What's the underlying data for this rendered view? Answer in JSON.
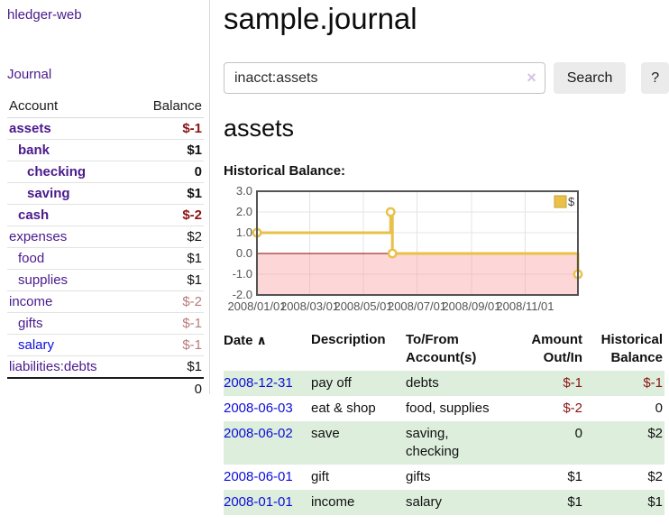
{
  "app": {
    "title": "hledger-web",
    "nav_journal": "Journal"
  },
  "colors": {
    "link_purple": "#4a1a8c",
    "link_blue": "#0d0dd9",
    "negative_strong": "#8b1414",
    "negative_muted": "#bb7a7a",
    "row_stripe_green": "#ddeedd",
    "button_bg": "#ebebeb",
    "chart_line_gold": "#e9c04a",
    "chart_negative_fill": "#fbdcdc",
    "chart_zero_line": "#8c0606",
    "chart_border": "#545454"
  },
  "sidebar": {
    "headers": [
      "Account",
      "Balance"
    ],
    "rows": [
      {
        "label": "assets",
        "depth": 1,
        "bold": true,
        "link_color": "purple",
        "balance": "$-1",
        "balance_style": "neg-strong"
      },
      {
        "label": "bank",
        "depth": 2,
        "bold": true,
        "link_color": "purple",
        "balance": "$1",
        "balance_style": "plain"
      },
      {
        "label": "checking",
        "depth": 3,
        "bold": true,
        "link_color": "purple",
        "balance": "0",
        "balance_style": "plain"
      },
      {
        "label": "saving",
        "depth": 3,
        "bold": true,
        "link_color": "purple",
        "balance": "$1",
        "balance_style": "plain"
      },
      {
        "label": "cash",
        "depth": 2,
        "bold": true,
        "link_color": "purple",
        "balance": "$-2",
        "balance_style": "neg-strong"
      },
      {
        "label": "expenses",
        "depth": 1,
        "bold": false,
        "link_color": "purple",
        "balance": "$2",
        "balance_style": "plain"
      },
      {
        "label": "food",
        "depth": 2,
        "bold": false,
        "link_color": "purple",
        "balance": "$1",
        "balance_style": "plain"
      },
      {
        "label": "supplies",
        "depth": 2,
        "bold": false,
        "link_color": "purple",
        "balance": "$1",
        "balance_style": "plain"
      },
      {
        "label": "income",
        "depth": 1,
        "bold": false,
        "link_color": "purple",
        "balance": "$-2",
        "balance_style": "neg-muted"
      },
      {
        "label": "gifts",
        "depth": 2,
        "bold": false,
        "link_color": "purple",
        "balance": "$-1",
        "balance_style": "neg-muted"
      },
      {
        "label": "salary",
        "depth": 2,
        "bold": false,
        "link_color": "blue",
        "balance": "$-1",
        "balance_style": "neg-muted"
      },
      {
        "label": "liabilities:debts",
        "depth": 1,
        "bold": false,
        "link_color": "purple",
        "balance": "$1",
        "balance_style": "plain"
      }
    ],
    "total": "0"
  },
  "main": {
    "title": "sample.journal",
    "search": {
      "value": "inacct:assets",
      "clear_icon": "×",
      "button": "Search",
      "help": "?"
    },
    "account_heading": "assets",
    "chart_label": "Historical Balance:"
  },
  "chart_data": {
    "type": "line",
    "title": "Historical Balance:",
    "step": true,
    "series": [
      {
        "name": "$",
        "color": "#e9c04a",
        "points": [
          [
            "2008-01-01",
            1
          ],
          [
            "2008-06-01",
            2
          ],
          [
            "2008-06-03",
            0
          ],
          [
            "2008-12-31",
            -1
          ]
        ]
      }
    ],
    "x_start": "2008-01-01",
    "x_end": "2008-12-31",
    "ylim": [
      -2,
      3
    ],
    "ytick_labels": [
      "3.0",
      "2.0",
      "1.0",
      "0.0",
      "-1.0",
      "-2.0"
    ],
    "ytick_values": [
      3,
      2,
      1,
      0,
      -1,
      -2
    ],
    "xtick_labels": [
      "2008/01/01",
      "2008/03/01",
      "2008/05/01",
      "2008/07/01",
      "2008/09/01",
      "2008/11/01"
    ],
    "xtick_dates": [
      "2008-01-01",
      "2008-03-01",
      "2008-05-01",
      "2008-07-01",
      "2008-09-01",
      "2008-11-01"
    ],
    "legend": {
      "label": "$",
      "position": "top-right"
    },
    "grid": true,
    "negative_region_shaded": true
  },
  "register": {
    "headers": [
      {
        "lines": [
          "Date"
        ],
        "align": "left",
        "sort": "asc",
        "sort_icon": "∧"
      },
      {
        "lines": [
          "Description"
        ],
        "align": "left"
      },
      {
        "lines": [
          "To/From",
          "Account(s)"
        ],
        "align": "left"
      },
      {
        "lines": [
          "Amount",
          "Out/In"
        ],
        "align": "right"
      },
      {
        "lines": [
          "Historical",
          "Balance"
        ],
        "align": "right"
      }
    ],
    "rows": [
      {
        "date": "2008-12-31",
        "description": "pay off",
        "accounts": "debts",
        "amount": "$-1",
        "amount_neg": true,
        "balance": "$-1",
        "balance_neg": true
      },
      {
        "date": "2008-06-03",
        "description": "eat & shop",
        "accounts": "food, supplies",
        "amount": "$-2",
        "amount_neg": true,
        "balance": "0",
        "balance_neg": false
      },
      {
        "date": "2008-06-02",
        "description": "save",
        "accounts": "saving, checking",
        "amount": "0",
        "amount_neg": false,
        "balance": "$2",
        "balance_neg": false
      },
      {
        "date": "2008-06-01",
        "description": "gift",
        "accounts": "gifts",
        "amount": "$1",
        "amount_neg": false,
        "balance": "$2",
        "balance_neg": false
      },
      {
        "date": "2008-01-01",
        "description": "income",
        "accounts": "salary",
        "amount": "$1",
        "amount_neg": false,
        "balance": "$1",
        "balance_neg": false
      }
    ]
  }
}
